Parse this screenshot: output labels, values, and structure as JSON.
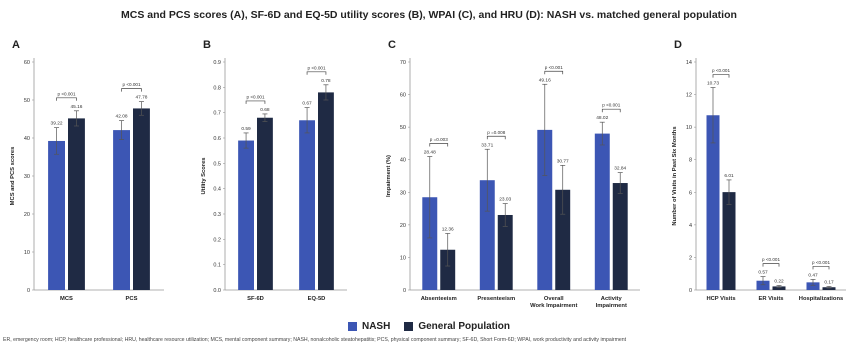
{
  "title": "MCS and PCS scores (A), SF-6D and EQ-5D utility scores (B), WPAI (C), and HRU (D): NASH vs. matched general population",
  "colors": {
    "nash": "#3c56b4",
    "general": "#1f2a44",
    "axis": "#999999",
    "error": "#555555"
  },
  "legend": [
    {
      "label": "NASH",
      "color": "#3c56b4"
    },
    {
      "label": "General Population",
      "color": "#1f2a44"
    }
  ],
  "footnote": "ER, emergency room; HCP, healthcare professional; HRU, healthcare resource utilization; MCS, mental component summary; NASH, nonalcoholic steatohepatitis; PCS, physical component summary; SF-6D, Short Form-6D; WPAI, work productivity and activity impairment",
  "chart_data": [
    {
      "panel": "A",
      "type": "bar",
      "ylabel": "MCS and PCS scores",
      "ylim": [
        0,
        60
      ],
      "ytick_step": 10,
      "tick_decimals": 0,
      "categories": [
        "MCS",
        "PCS"
      ],
      "series": [
        {
          "name": "NASH",
          "values": [
            39.22,
            42.08
          ],
          "errors": [
            3.5,
            2.5
          ],
          "labels": [
            "39.22",
            "42.08"
          ]
        },
        {
          "name": "General Population",
          "values": [
            45.16,
            47.78
          ],
          "errors": [
            2.0,
            1.8
          ],
          "labels": [
            "45.16",
            "47.78"
          ]
        }
      ],
      "annotations": [
        "p <0.001",
        "p <0.001"
      ]
    },
    {
      "panel": "B",
      "type": "bar",
      "ylabel": "Utility Scores",
      "ylim": [
        0,
        0.9
      ],
      "ytick_step": 0.1,
      "tick_decimals": 1,
      "categories": [
        "SF-6D",
        "EQ-5D"
      ],
      "series": [
        {
          "name": "NASH",
          "values": [
            0.59,
            0.67
          ],
          "errors": [
            0.03,
            0.05
          ],
          "labels": [
            "0.59",
            "0.67"
          ]
        },
        {
          "name": "General Population",
          "values": [
            0.68,
            0.78
          ],
          "errors": [
            0.015,
            0.03
          ],
          "labels": [
            "0.68",
            "0.78"
          ]
        }
      ],
      "annotations": [
        "p <0.001",
        "p <0.001"
      ]
    },
    {
      "panel": "C",
      "type": "bar",
      "ylabel": "Impairment (%)",
      "ylim": [
        0,
        70
      ],
      "ytick_step": 10,
      "tick_decimals": 0,
      "categories": [
        "Absenteeism",
        "Presenteeism",
        "Overall\nWork Impairment",
        "Activity\nImpairment"
      ],
      "series": [
        {
          "name": "NASH",
          "values": [
            28.48,
            33.71,
            49.16,
            48.02
          ],
          "errors": [
            12.5,
            9.5,
            14.0,
            3.5
          ],
          "labels": [
            "28.48",
            "33.71",
            "49.16",
            "48.02"
          ]
        },
        {
          "name": "General Population",
          "values": [
            12.36,
            23.03,
            30.77,
            32.84
          ],
          "errors": [
            5.0,
            3.5,
            7.5,
            3.2
          ],
          "labels": [
            "12.36",
            "23.03",
            "30.77",
            "32.84"
          ]
        }
      ],
      "annotations": [
        "p =0.003",
        "p =0.008",
        "p <0.001",
        "p <0.001"
      ]
    },
    {
      "panel": "D",
      "type": "bar",
      "ylabel": "Number of Visits in Past Six Months",
      "ylim": [
        0,
        14
      ],
      "ytick_step": 2,
      "tick_decimals": 0,
      "categories": [
        "HCP Visits",
        "ER Visits",
        "Hospitalizations"
      ],
      "series": [
        {
          "name": "NASH",
          "values": [
            10.73,
            0.57,
            0.47
          ],
          "errors": [
            1.7,
            0.25,
            0.18
          ],
          "labels": [
            "10.73",
            "0.57",
            "0.47"
          ]
        },
        {
          "name": "General Population",
          "values": [
            6.01,
            0.22,
            0.17
          ],
          "errors": [
            0.75,
            0.06,
            0.05
          ],
          "labels": [
            "6.01",
            "0.22",
            "0.17"
          ]
        }
      ],
      "annotations": [
        "p <0.001",
        "p <0.001",
        "p <0.001"
      ]
    }
  ]
}
